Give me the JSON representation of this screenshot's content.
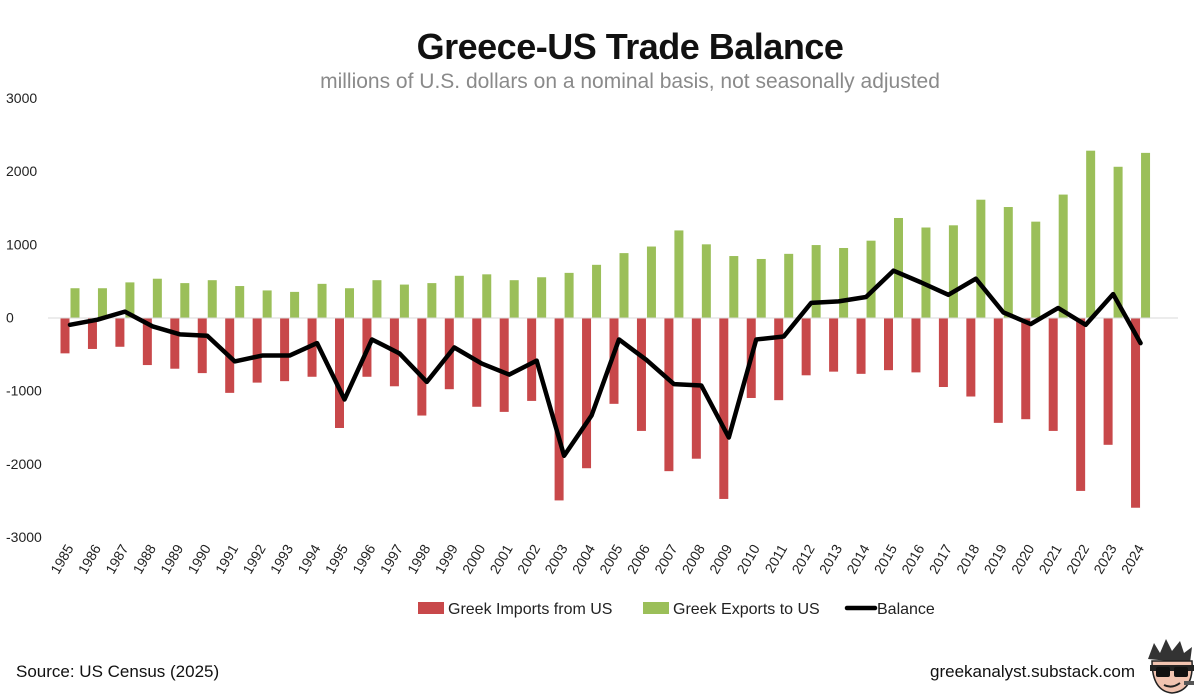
{
  "chart_data": {
    "type": "bar",
    "title": "Greece-US Trade Balance",
    "subtitle": "millions of U.S. dollars on a nominal basis, not seasonally adjusted",
    "ylim": [
      -3000,
      3000
    ],
    "yticks": [
      "3000",
      "2000",
      "1000",
      "0",
      "-1000",
      "-2000",
      "-3000"
    ],
    "grid": false,
    "legend_position": "bottom",
    "categories": [
      "1985",
      "1986",
      "1987",
      "1988",
      "1989",
      "1990",
      "1991",
      "1992",
      "1993",
      "1994",
      "1995",
      "1996",
      "1997",
      "1998",
      "1999",
      "2000",
      "2001",
      "2002",
      "2003",
      "2004",
      "2005",
      "2006",
      "2007",
      "2008",
      "2009",
      "2010",
      "2011",
      "2012",
      "2013",
      "2014",
      "2015",
      "2016",
      "2017",
      "2018",
      "2019",
      "2020",
      "2021",
      "2022",
      "2023",
      "2024"
    ],
    "series": [
      {
        "name": "Greek Imports from US",
        "kind": "bar",
        "color": "#c8484a",
        "values": [
          -490,
          -430,
          -400,
          -650,
          -700,
          -760,
          -1030,
          -890,
          -870,
          -810,
          -1510,
          -810,
          -940,
          -1340,
          -980,
          -1220,
          -1290,
          -1140,
          -2500,
          -2060,
          -1180,
          -1550,
          -2100,
          -1930,
          -2480,
          -1100,
          -1130,
          -790,
          -740,
          -770,
          -720,
          -750,
          -950,
          -1080,
          -1440,
          -1390,
          -1550,
          -2370,
          -1740,
          -2600
        ]
      },
      {
        "name": "Greek Exports to US",
        "kind": "bar",
        "color": "#9bbf59",
        "values": [
          400,
          400,
          480,
          530,
          470,
          510,
          430,
          370,
          350,
          460,
          400,
          510,
          450,
          470,
          570,
          590,
          510,
          550,
          610,
          720,
          880,
          970,
          1190,
          1000,
          840,
          800,
          870,
          990,
          950,
          1050,
          1360,
          1230,
          1260,
          1610,
          1510,
          1310,
          1680,
          2280,
          2060,
          2250
        ]
      },
      {
        "name": "Balance",
        "kind": "line",
        "color": "#000000",
        "values": [
          -100,
          -30,
          80,
          -120,
          -230,
          -250,
          -600,
          -520,
          -520,
          -350,
          -1120,
          -300,
          -490,
          -880,
          -410,
          -630,
          -780,
          -590,
          -1890,
          -1340,
          -300,
          -580,
          -910,
          -930,
          -1640,
          -300,
          -260,
          200,
          220,
          280,
          640,
          480,
          310,
          530,
          70,
          -90,
          130,
          -100,
          320,
          -350
        ]
      }
    ]
  },
  "footer": {
    "source": "Source: US Census (2025)",
    "site": "greekanalyst.substack.com"
  },
  "icons": {
    "avatar": "cartoon-avatar-with-sunglasses-icon"
  }
}
